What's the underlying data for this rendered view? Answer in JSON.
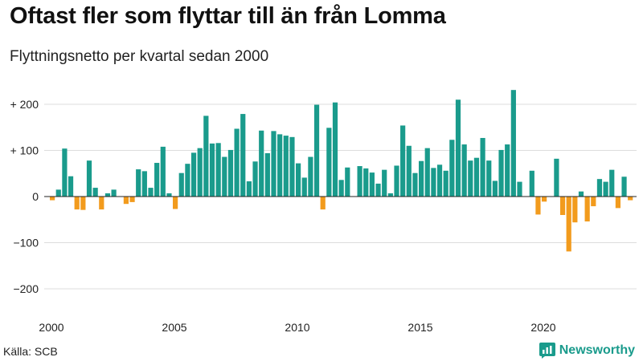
{
  "chart_data": {
    "type": "bar",
    "title": "Oftast fler som flyttar till än från Lomma",
    "subtitle": "Flyttningsnetto per kvartal sedan 2000",
    "xlabel": "",
    "ylabel": "",
    "ylim": [
      -230,
      240
    ],
    "grid": true,
    "legend": "none",
    "colors": {
      "positive": "#1a9b8c",
      "negative": "#f29b1d"
    },
    "y_ticks": [
      {
        "value": 200,
        "label": "+ 200"
      },
      {
        "value": 100,
        "label": "+ 100"
      },
      {
        "value": 0,
        "label": "0"
      },
      {
        "value": -100,
        "label": "−100"
      },
      {
        "value": -200,
        "label": "−200"
      }
    ],
    "x_ticks": [
      {
        "value": 2000,
        "label": "2000"
      },
      {
        "value": 2005,
        "label": "2005"
      },
      {
        "value": 2010,
        "label": "2010"
      },
      {
        "value": 2015,
        "label": "2015"
      },
      {
        "value": 2020,
        "label": "2020"
      }
    ],
    "categories": [
      "2000K1",
      "2000K2",
      "2000K3",
      "2000K4",
      "2001K1",
      "2001K2",
      "2001K3",
      "2001K4",
      "2002K1",
      "2002K2",
      "2002K3",
      "2002K4",
      "2003K1",
      "2003K2",
      "2003K3",
      "2003K4",
      "2004K1",
      "2004K2",
      "2004K3",
      "2004K4",
      "2005K1",
      "2005K2",
      "2005K3",
      "2005K4",
      "2006K1",
      "2006K2",
      "2006K3",
      "2006K4",
      "2007K1",
      "2007K2",
      "2007K3",
      "2007K4",
      "2008K1",
      "2008K2",
      "2008K3",
      "2008K4",
      "2009K1",
      "2009K2",
      "2009K3",
      "2009K4",
      "2010K1",
      "2010K2",
      "2010K3",
      "2010K4",
      "2011K1",
      "2011K2",
      "2011K3",
      "2011K4",
      "2012K1",
      "2012K2",
      "2012K3",
      "2012K4",
      "2013K1",
      "2013K2",
      "2013K3",
      "2013K4",
      "2014K1",
      "2014K2",
      "2014K3",
      "2014K4",
      "2015K1",
      "2015K2",
      "2015K3",
      "2015K4",
      "2016K1",
      "2016K2",
      "2016K3",
      "2016K4",
      "2017K1",
      "2017K2",
      "2017K3",
      "2017K4",
      "2018K1",
      "2018K2",
      "2018K3",
      "2018K4",
      "2019K1",
      "2019K2",
      "2019K3",
      "2019K4",
      "2020K1",
      "2020K2",
      "2020K3",
      "2020K4",
      "2021K1",
      "2021K2",
      "2021K3",
      "2021K4",
      "2022K1",
      "2022K2",
      "2022K3",
      "2022K4",
      "2023K1",
      "2023K2",
      "2023K3",
      "2023K4"
    ],
    "values": [
      -8,
      15,
      104,
      44,
      -28,
      -29,
      78,
      19,
      -28,
      7,
      15,
      0,
      -16,
      -12,
      59,
      55,
      19,
      73,
      108,
      7,
      -27,
      51,
      71,
      95,
      105,
      175,
      115,
      116,
      86,
      101,
      147,
      179,
      33,
      76,
      143,
      94,
      142,
      135,
      132,
      129,
      72,
      41,
      86,
      199,
      -28,
      149,
      204,
      36,
      63,
      0,
      66,
      61,
      52,
      28,
      58,
      7,
      67,
      154,
      110,
      51,
      77,
      105,
      62,
      69,
      56,
      123,
      210,
      113,
      78,
      84,
      127,
      78,
      34,
      101,
      113,
      231,
      32,
      0,
      56,
      -39,
      -11,
      0,
      82,
      -40,
      -119,
      -56,
      11,
      -54,
      -21,
      38,
      32,
      58,
      -25,
      43,
      -8,
      0
    ]
  },
  "footer": {
    "source": "Källa: SCB",
    "brand": "Newsworthy",
    "brand_icon": "newsworthy-logo-icon"
  }
}
